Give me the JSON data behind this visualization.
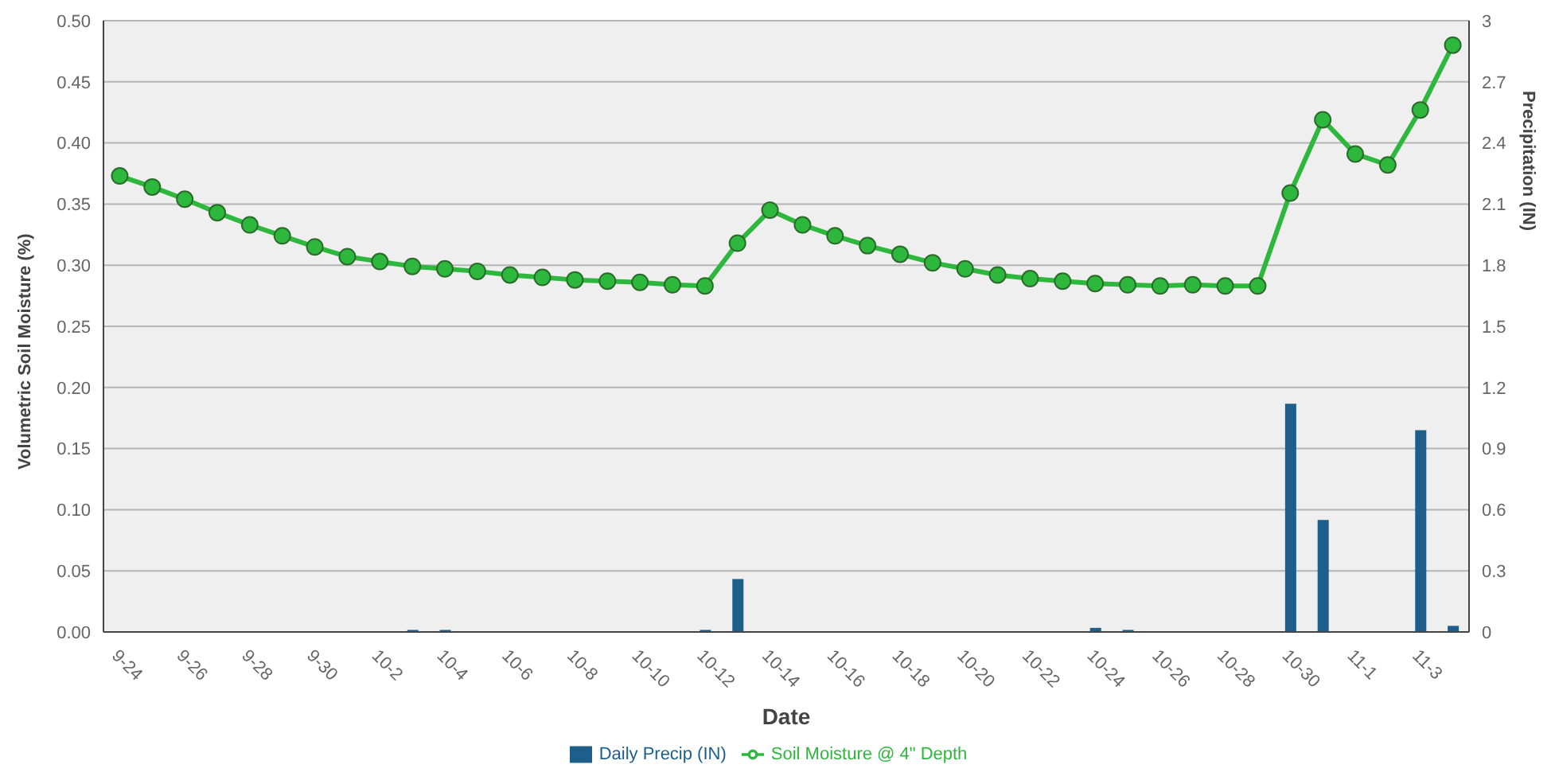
{
  "chart_data": {
    "type": "bar",
    "xlabel": "Date",
    "ylabel": "Volumetric Soil Moisture (%)",
    "y2label": "Precipitation (IN)",
    "categories": [
      "9-24",
      null,
      "9-26",
      null,
      "9-28",
      null,
      "9-30",
      null,
      "10-2",
      null,
      "10-4",
      null,
      "10-6",
      null,
      "10-8",
      null,
      "10-10",
      null,
      "10-12",
      null,
      "10-14",
      null,
      "10-16",
      null,
      "10-18",
      null,
      "10-20",
      null,
      "10-22",
      null,
      "10-24",
      null,
      "10-26",
      null,
      "10-28",
      null,
      "10-30",
      null,
      "11-1",
      null,
      "11-3",
      null
    ],
    "series": [
      {
        "name": "Daily Precip (IN)",
        "axis": "y2",
        "color": "#1d5f8a",
        "values": [
          0,
          0,
          0,
          0,
          0,
          0,
          0,
          0,
          0,
          0.01,
          0.01,
          0,
          0,
          0,
          0,
          0,
          0,
          0,
          0.01,
          0.26,
          0,
          0,
          0,
          0,
          0,
          0,
          0,
          0,
          0,
          0,
          0.02,
          0.01,
          0,
          0,
          0,
          0,
          1.12,
          0.55,
          0,
          0,
          0.99,
          0.03
        ]
      },
      {
        "name": "Soil Moisture @ 4\" Depth",
        "type": "line",
        "color": "#2db83d",
        "values": [
          0.373,
          0.364,
          0.354,
          0.343,
          0.333,
          0.324,
          0.315,
          0.307,
          0.303,
          0.299,
          0.297,
          0.295,
          0.292,
          0.29,
          0.288,
          0.287,
          0.286,
          0.284,
          0.283,
          0.318,
          0.345,
          0.333,
          0.324,
          0.316,
          0.309,
          0.302,
          0.297,
          0.292,
          0.289,
          0.287,
          0.285,
          0.284,
          0.283,
          0.284,
          0.283,
          0.283,
          0.359,
          0.419,
          0.391,
          0.382,
          0.427,
          0.48
        ]
      }
    ],
    "ylim": [
      0,
      0.5
    ],
    "yticks": [
      {
        "value": 0,
        "label": "0.00"
      },
      {
        "value": 0.05,
        "label": "0.05"
      },
      {
        "value": 0.1,
        "label": "0.10"
      },
      {
        "value": 0.15,
        "label": "0.15"
      },
      {
        "value": 0.2,
        "label": "0.20"
      },
      {
        "value": 0.25,
        "label": "0.25"
      },
      {
        "value": 0.3,
        "label": "0.30"
      },
      {
        "value": 0.35,
        "label": "0.35"
      },
      {
        "value": 0.4,
        "label": "0.40"
      },
      {
        "value": 0.45,
        "label": "0.45"
      },
      {
        "value": 0.5,
        "label": "0.50"
      }
    ],
    "y2lim": [
      0,
      3
    ],
    "y2ticks": [
      0,
      0.3,
      0.6,
      0.9,
      1.2,
      1.5,
      1.8,
      2.1,
      2.4,
      2.7,
      3
    ],
    "grid": "y",
    "legend": "bottom",
    "marker": "circle",
    "line_style": "solid"
  }
}
